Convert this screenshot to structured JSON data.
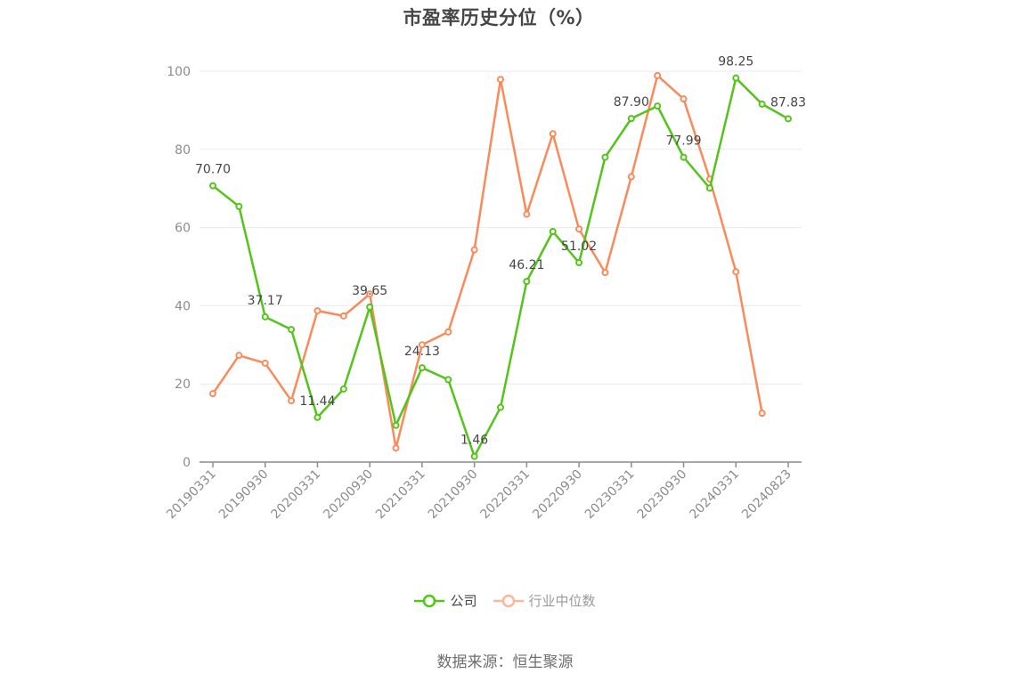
{
  "title": "市盈率历史分位（%）",
  "source": "数据来源：恒生聚源",
  "colors": {
    "company": "#52c41a",
    "industry": "#fa8a5a",
    "grid": "#e6eaf3",
    "axis": "#8c8c8c"
  },
  "legend": [
    {
      "name": "公司",
      "color": "#52c41a"
    },
    {
      "name": "行业中位数",
      "color": "#fdb69a"
    }
  ],
  "chart_data": {
    "type": "line",
    "title": "市盈率历史分位（%）",
    "xlabel": "",
    "ylabel": "",
    "ylim": [
      0,
      100
    ],
    "yticks": [
      0,
      20,
      40,
      60,
      80,
      100
    ],
    "grid": true,
    "legend_position": "bottom",
    "x_tick_labels": [
      "20190331",
      "20190930",
      "20200331",
      "20200930",
      "20210331",
      "20210930",
      "20220331",
      "20220930",
      "20230331",
      "20230930",
      "20240331",
      "20240823"
    ],
    "x": [
      "20190331",
      "20190630",
      "20190930",
      "20191231",
      "20200331",
      "20200630",
      "20200930",
      "20201231",
      "20210331",
      "20210630",
      "20210930",
      "20211231",
      "20220331",
      "20220630",
      "20220930",
      "20221231",
      "20230331",
      "20230630",
      "20230930",
      "20231231",
      "20240331",
      "20240630",
      "20240823"
    ],
    "series": [
      {
        "name": "公司",
        "values": [
          70.7,
          65.4,
          37.17,
          33.9,
          11.44,
          18.7,
          39.65,
          9.4,
          24.13,
          21.1,
          1.46,
          14.0,
          46.21,
          59.0,
          51.02,
          78.0,
          87.9,
          91.1,
          77.99,
          70.1,
          98.25,
          91.6,
          87.83
        ],
        "labels": {
          "0": "70.70",
          "2": "37.17",
          "4": "11.44",
          "6": "39.65",
          "8": "24.13",
          "10": "1.46",
          "12": "46.21",
          "14": "51.02",
          "16": "87.90",
          "18": "77.99",
          "20": "98.25",
          "22": "87.83"
        }
      },
      {
        "name": "行业中位数",
        "values": [
          17.5,
          27.3,
          25.3,
          15.7,
          38.7,
          37.4,
          43.0,
          3.6,
          30.0,
          33.3,
          54.3,
          97.9,
          63.4,
          84.0,
          59.6,
          48.5,
          73.0,
          98.9,
          92.9,
          72.4,
          48.7,
          12.5,
          null
        ]
      }
    ]
  }
}
